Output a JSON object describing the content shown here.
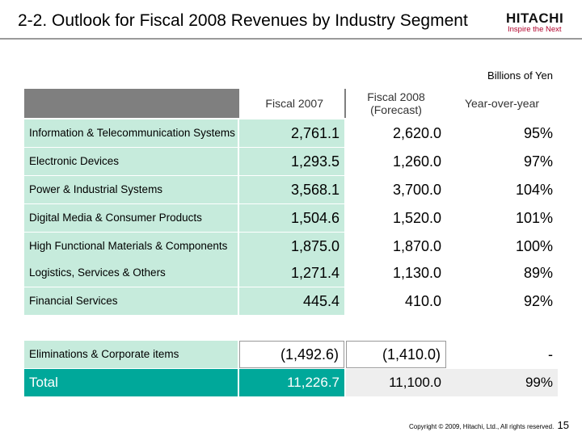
{
  "header": {
    "title": "2-2. Outlook for Fiscal 2008 Revenues by Industry Segment",
    "logo": {
      "name": "HITACHI",
      "tagline": "Inspire the Next"
    }
  },
  "units_label": "Billions of Yen",
  "table": {
    "columns": [
      "Fiscal 2007",
      "Fiscal 2008 (Forecast)",
      "Year-over-year"
    ],
    "rows": [
      {
        "segment": "Information & Telecommunication Systems",
        "fy2007": "2,761.1",
        "fy2008": "2,620.0",
        "yoy": "95%"
      },
      {
        "segment": "Electronic Devices",
        "fy2007": "1,293.5",
        "fy2008": "1,260.0",
        "yoy": "97%"
      },
      {
        "segment": "Power & Industrial Systems",
        "fy2007": "3,568.1",
        "fy2008": "3,700.0",
        "yoy": "104%"
      },
      {
        "segment": "Digital Media & Consumer Products",
        "fy2007": "1,504.6",
        "fy2008": "1,520.0",
        "yoy": "101%"
      },
      {
        "segment": "High Functional Materials & Components",
        "fy2007": "1,875.0",
        "fy2008": "1,870.0",
        "yoy": "100%"
      },
      {
        "segment": "Logistics, Services & Others",
        "fy2007": "1,271.4",
        "fy2008": "1,130.0",
        "yoy": "89%"
      },
      {
        "segment": "Financial Services",
        "fy2007": "445.4",
        "fy2008": "410.0",
        "yoy": "92%"
      }
    ],
    "eliminations": {
      "segment": "Eliminations & Corporate items",
      "fy2007": "(1,492.6)",
      "fy2008": "(1,410.0)",
      "yoy": "-"
    },
    "total": {
      "segment": "Total",
      "fy2007": "11,226.7",
      "fy2008": "11,100.0",
      "yoy": "99%"
    }
  },
  "footer": {
    "copyright": "Copyright © 2009, Hitachi, Ltd., All rights reserved.",
    "page_number": "15"
  },
  "colors": {
    "segment_fill": "#c6ebdc",
    "total_fill": "#00a89a",
    "header_bar": "#7f7f7f",
    "logo_tagline": "#b0002a"
  }
}
